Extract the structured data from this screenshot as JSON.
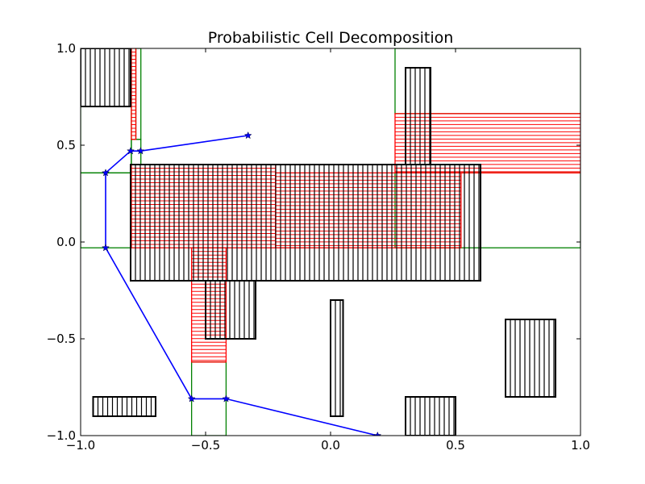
{
  "chart_data": {
    "type": "scatter",
    "title": "Probabilistic Cell Decomposition",
    "xlabel": "",
    "ylabel": "",
    "xlim": [
      -1.0,
      1.0
    ],
    "ylim": [
      -1.0,
      1.0
    ],
    "x_ticks": [
      -1.0,
      -0.5,
      0.0,
      0.5,
      1.0
    ],
    "y_ticks": [
      -1.0,
      -0.5,
      0.0,
      0.5,
      1.0
    ],
    "x_tick_labels": [
      "−1.0",
      "−0.5",
      "0.0",
      "0.5",
      "1.0"
    ],
    "y_tick_labels": [
      "−1.0",
      "−0.5",
      "0.0",
      "0.5",
      "1.0"
    ],
    "grid": false,
    "colors": {
      "obstacle": "#000000",
      "possible_cell": "#ff0000",
      "free_cell": "#008000",
      "path": "#0000ff"
    },
    "free_cells": [
      [
        -0.797,
        0.4,
        0.038,
        0.13
      ],
      [
        -0.779,
        0.53,
        0.02,
        0.47
      ],
      [
        -1.0,
        0.357,
        0.203,
        0.643
      ],
      [
        -1.0,
        -0.03,
        0.203,
        0.387
      ],
      [
        -0.556,
        -1.0,
        0.138,
        0.38
      ],
      [
        0.258,
        0.663,
        0.742,
        0.337
      ],
      [
        0.258,
        -0.03,
        0.742,
        0.387
      ]
    ],
    "possible_cells": [
      [
        -0.797,
        0.53,
        0.018,
        0.47
      ],
      [
        -0.797,
        -0.03,
        0.577,
        0.43
      ],
      [
        -0.22,
        -0.03,
        0.742,
        0.387
      ],
      [
        -0.556,
        -0.62,
        0.138,
        0.59
      ],
      [
        0.258,
        0.357,
        0.742,
        0.306
      ]
    ],
    "obstacles": [
      [
        -1.0,
        0.7,
        0.2,
        0.3
      ],
      [
        -0.8,
        -0.2,
        1.4,
        0.6
      ],
      [
        -0.5,
        -0.5,
        0.2,
        0.3
      ],
      [
        0.3,
        0.4,
        0.1,
        0.5
      ],
      [
        0.0,
        -0.9,
        0.05,
        0.6
      ],
      [
        0.7,
        -0.8,
        0.2,
        0.4
      ],
      [
        -0.95,
        -0.9,
        0.25,
        0.1
      ],
      [
        0.3,
        -1.0,
        0.2,
        0.2
      ]
    ],
    "path": [
      [
        -0.33,
        0.55
      ],
      [
        -0.76,
        0.47
      ],
      [
        -0.8,
        0.47
      ],
      [
        -0.9,
        0.357
      ],
      [
        -0.9,
        -0.03
      ],
      [
        -0.556,
        -0.81
      ],
      [
        -0.418,
        -0.81
      ],
      [
        0.188,
        -1.0
      ]
    ]
  }
}
